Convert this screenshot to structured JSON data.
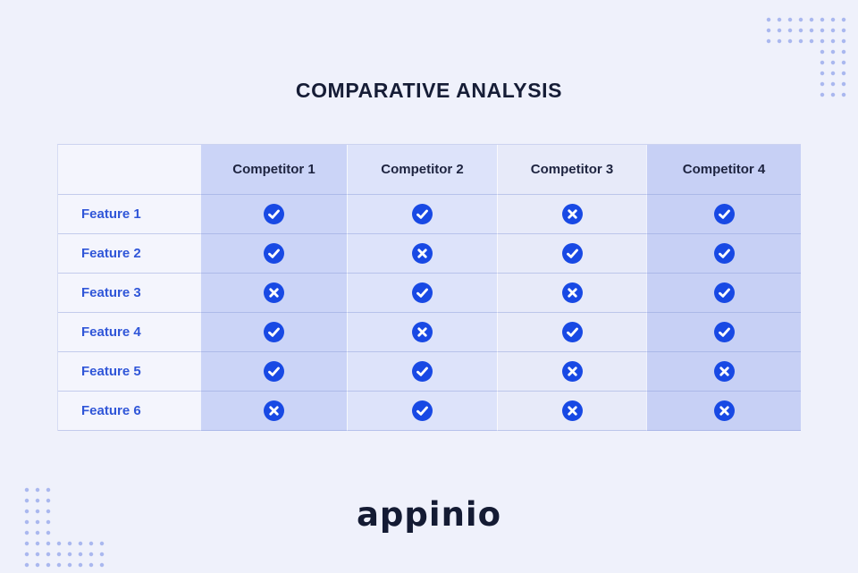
{
  "title": "COMPARATIVE ANALYSIS",
  "chart_data": {
    "type": "table",
    "title": "COMPARATIVE ANALYSIS",
    "row_header": "",
    "columns": [
      "Competitor 1",
      "Competitor 2",
      "Competitor 3",
      "Competitor 4"
    ],
    "rows": [
      {
        "label": "Feature 1",
        "values": [
          "check",
          "check",
          "cross",
          "check"
        ]
      },
      {
        "label": "Feature 2",
        "values": [
          "check",
          "cross",
          "check",
          "check"
        ]
      },
      {
        "label": "Feature 3",
        "values": [
          "cross",
          "check",
          "cross",
          "check"
        ]
      },
      {
        "label": "Feature 4",
        "values": [
          "check",
          "cross",
          "check",
          "check"
        ]
      },
      {
        "label": "Feature 5",
        "values": [
          "check",
          "check",
          "cross",
          "cross"
        ]
      },
      {
        "label": "Feature 6",
        "values": [
          "cross",
          "check",
          "cross",
          "cross"
        ]
      }
    ],
    "legend": "check = blue circle with white checkmark, cross = blue circle with white x"
  },
  "logo": {
    "text": "appinio"
  },
  "colors": {
    "page_bg": "#eff1fb",
    "feature_col_bg": "#f4f5fd",
    "column_bgs": [
      "#cbd4f7",
      "#dde3fa",
      "#e7eaf9",
      "#c7d0f5"
    ],
    "icon_blue": "#1849e4",
    "feature_text": "#3056d8",
    "header_text": "#1e2440",
    "title_text": "#161d36",
    "logo_text": "#141b33",
    "dots": "#aab8ef"
  }
}
